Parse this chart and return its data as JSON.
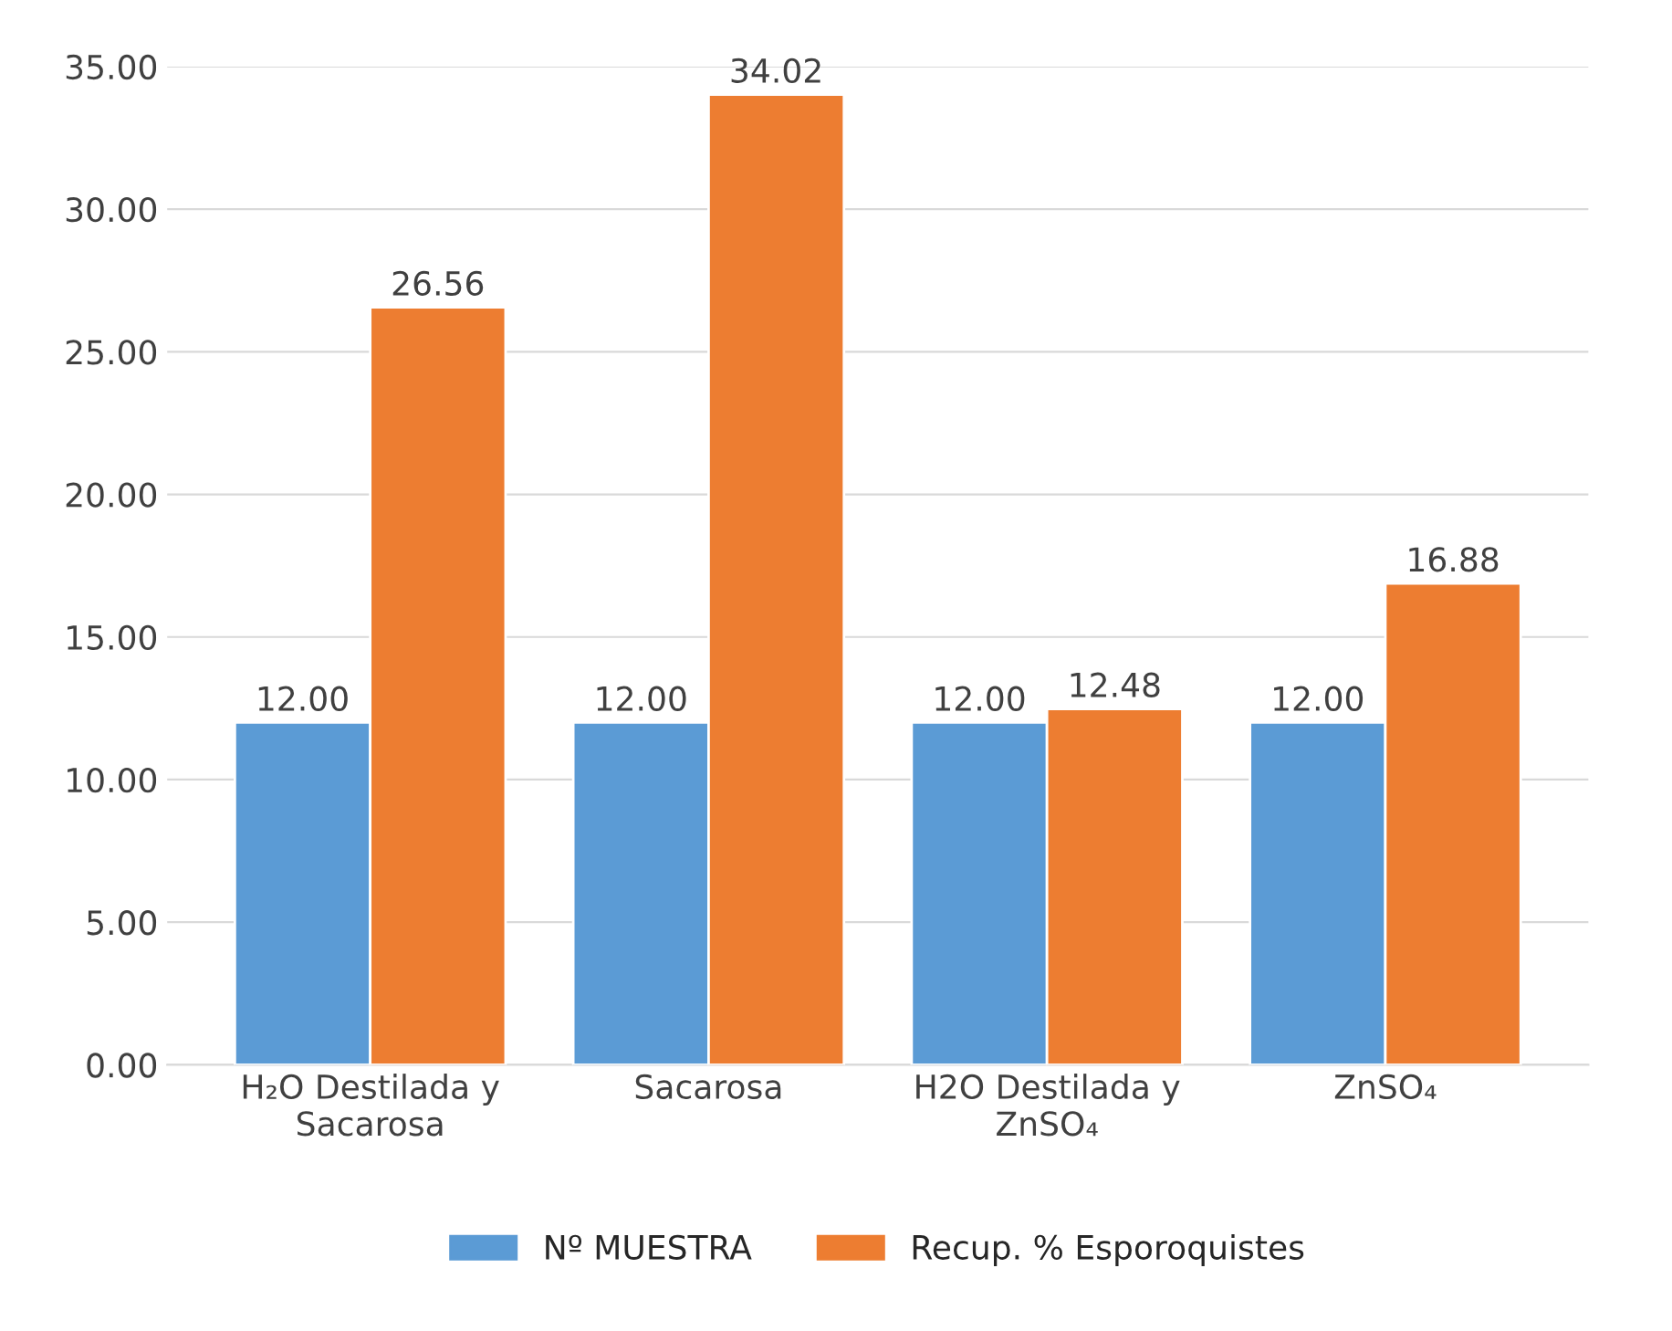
{
  "chart_data": {
    "type": "bar",
    "categories": [
      "H₂O Destilada y\nSacarosa",
      "Sacarosa",
      "H2O Destilada y\nZnSO₄",
      "ZnSO₄"
    ],
    "series": [
      {
        "name": "Nº MUESTRA",
        "color": "#5b9bd5",
        "values": [
          12.0,
          12.0,
          12.0,
          12.0
        ],
        "value_labels": [
          "12.00",
          "12.00",
          "12.00",
          "12.00"
        ]
      },
      {
        "name": "Recup. % Esporoquistes",
        "color": "#ed7d31",
        "values": [
          26.56,
          34.02,
          12.48,
          16.88
        ],
        "value_labels": [
          "26.56",
          "34.02",
          "12.48",
          "16.88"
        ]
      }
    ],
    "ylim": [
      0,
      35
    ],
    "yticks": [
      {
        "value": 0,
        "label": "0.00"
      },
      {
        "value": 5,
        "label": "5.00"
      },
      {
        "value": 10,
        "label": "10.00"
      },
      {
        "value": 15,
        "label": "15.00"
      },
      {
        "value": 20,
        "label": "20.00"
      },
      {
        "value": 25,
        "label": "25.00"
      },
      {
        "value": 30,
        "label": "30.00"
      },
      {
        "value": 35,
        "label": "35.00"
      }
    ],
    "grid": "y",
    "legend": "bottom"
  }
}
